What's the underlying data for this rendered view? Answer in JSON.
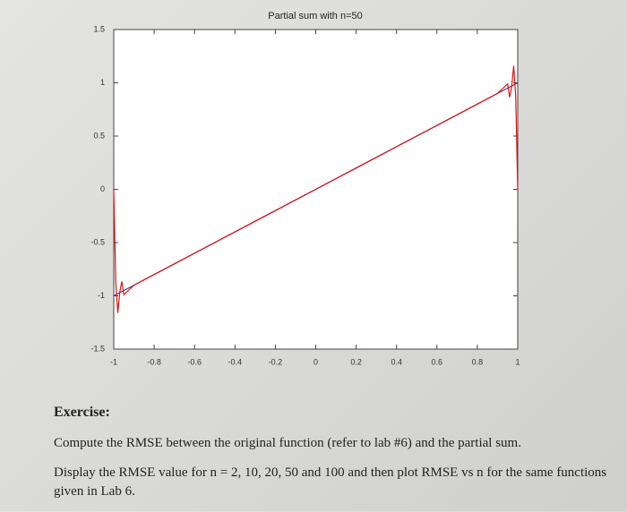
{
  "chart_data": {
    "type": "line",
    "title": "Partial sum with n=50",
    "x": [
      -1,
      -0.99,
      -0.98,
      -0.97,
      -0.96,
      -0.95,
      -0.9,
      -0.8,
      -0.7,
      -0.6,
      -0.5,
      -0.4,
      -0.3,
      -0.2,
      -0.1,
      0,
      0.1,
      0.2,
      0.3,
      0.4,
      0.5,
      0.6,
      0.7,
      0.8,
      0.9,
      0.95,
      0.96,
      0.97,
      0.98,
      0.99,
      1
    ],
    "series": [
      {
        "color": "#3a3a8c",
        "x": [
          -1,
          1
        ],
        "values": [
          -1,
          1
        ]
      },
      {
        "color": "#e01010",
        "values": [
          0,
          -0.875,
          -1.159,
          -0.963,
          -0.864,
          -0.99,
          -0.9,
          -0.8,
          -0.7,
          -0.6,
          -0.5,
          -0.4,
          -0.3,
          -0.2,
          -0.1,
          0,
          0.1,
          0.2,
          0.3,
          0.4,
          0.5,
          0.6,
          0.7,
          0.8,
          0.9,
          0.99,
          0.864,
          0.963,
          1.159,
          0.875,
          0
        ]
      }
    ],
    "xlim": [
      -1,
      1
    ],
    "xticks": [
      -1,
      -0.8,
      -0.6,
      -0.4,
      -0.2,
      0,
      0.2,
      0.4,
      0.6,
      0.8,
      1
    ],
    "ylim": [
      -1.5,
      1.5
    ],
    "yticks": [
      -1.5,
      -1,
      -0.5,
      0,
      0.5,
      1,
      1.5
    ],
    "grid": false
  },
  "exercise": {
    "heading": "Exercise:",
    "paragraphs": [
      "Compute the RMSE between the original function (refer to lab #6) and the partial sum.",
      "Display the RMSE value for n = 2, 10, 20, 50 and 100 and then plot RMSE vs n for the same functions given in Lab 6."
    ]
  }
}
